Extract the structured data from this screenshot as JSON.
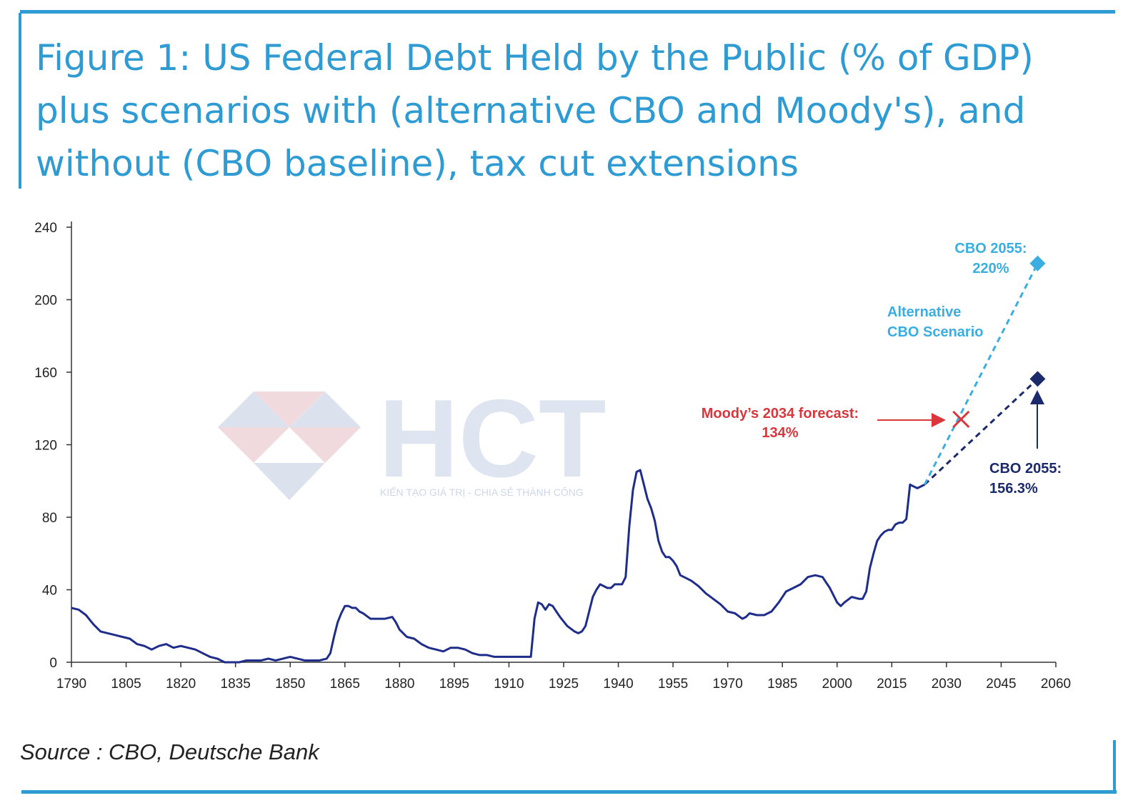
{
  "title": {
    "line1": "Figure 1: US Federal Debt Held by the Public (% of GDP)",
    "line2": "plus scenarios with (alternative CBO and Moody's), and",
    "line3": "without (CBO baseline), tax cut extensions"
  },
  "source": "Source : CBO, Deutsche Bank",
  "watermark": {
    "logo_text": "HCT",
    "tagline": "KIẾN TẠO GIÁ TRỊ - CHIA SẺ THÀNH CÔNG"
  },
  "colors": {
    "accent": "#2f9bd3",
    "history_line": "#1f2d8a",
    "cbo_baseline": "#1b2a6b",
    "alternative_cbo": "#3aaee0",
    "moodys": "#d9373c"
  },
  "chart_data": {
    "type": "line",
    "title": "Figure 1: US Federal Debt Held by the Public (% of GDP) plus scenarios with (alternative CBO and Moody's), and without (CBO baseline), tax cut extensions",
    "xlabel": "",
    "ylabel": "",
    "xlim": [
      1790,
      2060
    ],
    "ylim": [
      0,
      240
    ],
    "xticks": [
      1790,
      1805,
      1820,
      1835,
      1850,
      1865,
      1880,
      1895,
      1910,
      1925,
      1940,
      1955,
      1970,
      1985,
      2000,
      2015,
      2030,
      2045,
      2060
    ],
    "yticks": [
      0,
      40,
      80,
      120,
      160,
      200,
      240
    ],
    "grid": false,
    "series": [
      {
        "style": "solid",
        "x": [
          1790,
          1792,
          1794,
          1796,
          1798,
          1800,
          1802,
          1804,
          1806,
          1808,
          1810,
          1812,
          1814,
          1816,
          1818,
          1820,
          1822,
          1824,
          1826,
          1828,
          1830,
          1832,
          1834,
          1836,
          1838,
          1840,
          1842,
          1844,
          1846,
          1848,
          1850,
          1852,
          1854,
          1856,
          1858,
          1860,
          1861,
          1862,
          1863,
          1864,
          1865,
          1866,
          1867,
          1868,
          1869,
          1870,
          1872,
          1874,
          1875,
          1876,
          1878,
          1879,
          1880,
          1882,
          1884,
          1886,
          1888,
          1890,
          1892,
          1894,
          1896,
          1898,
          1900,
          1902,
          1904,
          1906,
          1908,
          1910,
          1912,
          1914,
          1916,
          1917,
          1918,
          1919,
          1920,
          1921,
          1922,
          1923,
          1924,
          1926,
          1928,
          1929,
          1930,
          1931,
          1932,
          1933,
          1934,
          1935,
          1936,
          1937,
          1938,
          1939,
          1940,
          1941,
          1942,
          1943,
          1944,
          1945,
          1946,
          1947,
          1948,
          1949,
          1950,
          1951,
          1952,
          1953,
          1954,
          1955,
          1956,
          1957,
          1958,
          1960,
          1962,
          1964,
          1966,
          1968,
          1970,
          1972,
          1974,
          1975,
          1976,
          1978,
          1980,
          1982,
          1984,
          1986,
          1988,
          1990,
          1992,
          1994,
          1996,
          1997,
          1998,
          2000,
          2001,
          2002,
          2004,
          2006,
          2007,
          2008,
          2009,
          2010,
          2011,
          2012,
          2013,
          2014,
          2015,
          2016,
          2017,
          2018,
          2019,
          2020,
          2021,
          2022,
          2023,
          2024
        ],
        "y": [
          30,
          29,
          26,
          21,
          17,
          16,
          15,
          14,
          13,
          10,
          9,
          7,
          9,
          10,
          8,
          9,
          8,
          7,
          5,
          3,
          2,
          0,
          0,
          0,
          1,
          1,
          1,
          2,
          1,
          2,
          3,
          2,
          1,
          1,
          1,
          2,
          5,
          14,
          22,
          27,
          31,
          31,
          30,
          30,
          28,
          27,
          24,
          24,
          24,
          24,
          25,
          22,
          18,
          14,
          13,
          10,
          8,
          7,
          6,
          8,
          8,
          7,
          5,
          4,
          4,
          3,
          3,
          3,
          3,
          3,
          3,
          24,
          33,
          32,
          29,
          32,
          31,
          28,
          25,
          20,
          17,
          16,
          17,
          20,
          28,
          36,
          40,
          43,
          42,
          41,
          41,
          43,
          43,
          43,
          47,
          75,
          95,
          105,
          106,
          98,
          90,
          85,
          78,
          67,
          61,
          58,
          58,
          56,
          53,
          48,
          47,
          45,
          42,
          38,
          35,
          32,
          28,
          27,
          24,
          25,
          27,
          26,
          26,
          28,
          33,
          39,
          41,
          43,
          47,
          48,
          47,
          44,
          41,
          33,
          31,
          33,
          36,
          35,
          35,
          39,
          52,
          60,
          67,
          70,
          72,
          73,
          73,
          76,
          77,
          77,
          79,
          98,
          97,
          96,
          97,
          98
        ]
      },
      {
        "style": "dashed",
        "x": [
          2024,
          2055
        ],
        "y": [
          98,
          156.3
        ]
      },
      {
        "style": "dashed",
        "x": [
          2024,
          2055
        ],
        "y": [
          98,
          220
        ]
      }
    ],
    "points": [
      {
        "label": "CBO 2055: 156.3%",
        "x": 2055,
        "y": 156.3,
        "marker": "diamond"
      },
      {
        "label": "CBO 2055: 220%",
        "x": 2055,
        "y": 220,
        "marker": "diamond"
      },
      {
        "label": "Moody’s 2034 forecast: 134%",
        "x": 2034,
        "y": 134,
        "marker": "x"
      }
    ],
    "annotations": {
      "alt_scenario_line1": "Alternative",
      "alt_scenario_line2": "CBO Scenario",
      "cbo_high_line1": "CBO 2055:",
      "cbo_high_line2": "220%",
      "cbo_base_line1": "CBO 2055:",
      "cbo_base_line2": "156.3%",
      "moodys_line1": "Moody’s 2034 forecast:",
      "moodys_line2": "134%"
    }
  }
}
